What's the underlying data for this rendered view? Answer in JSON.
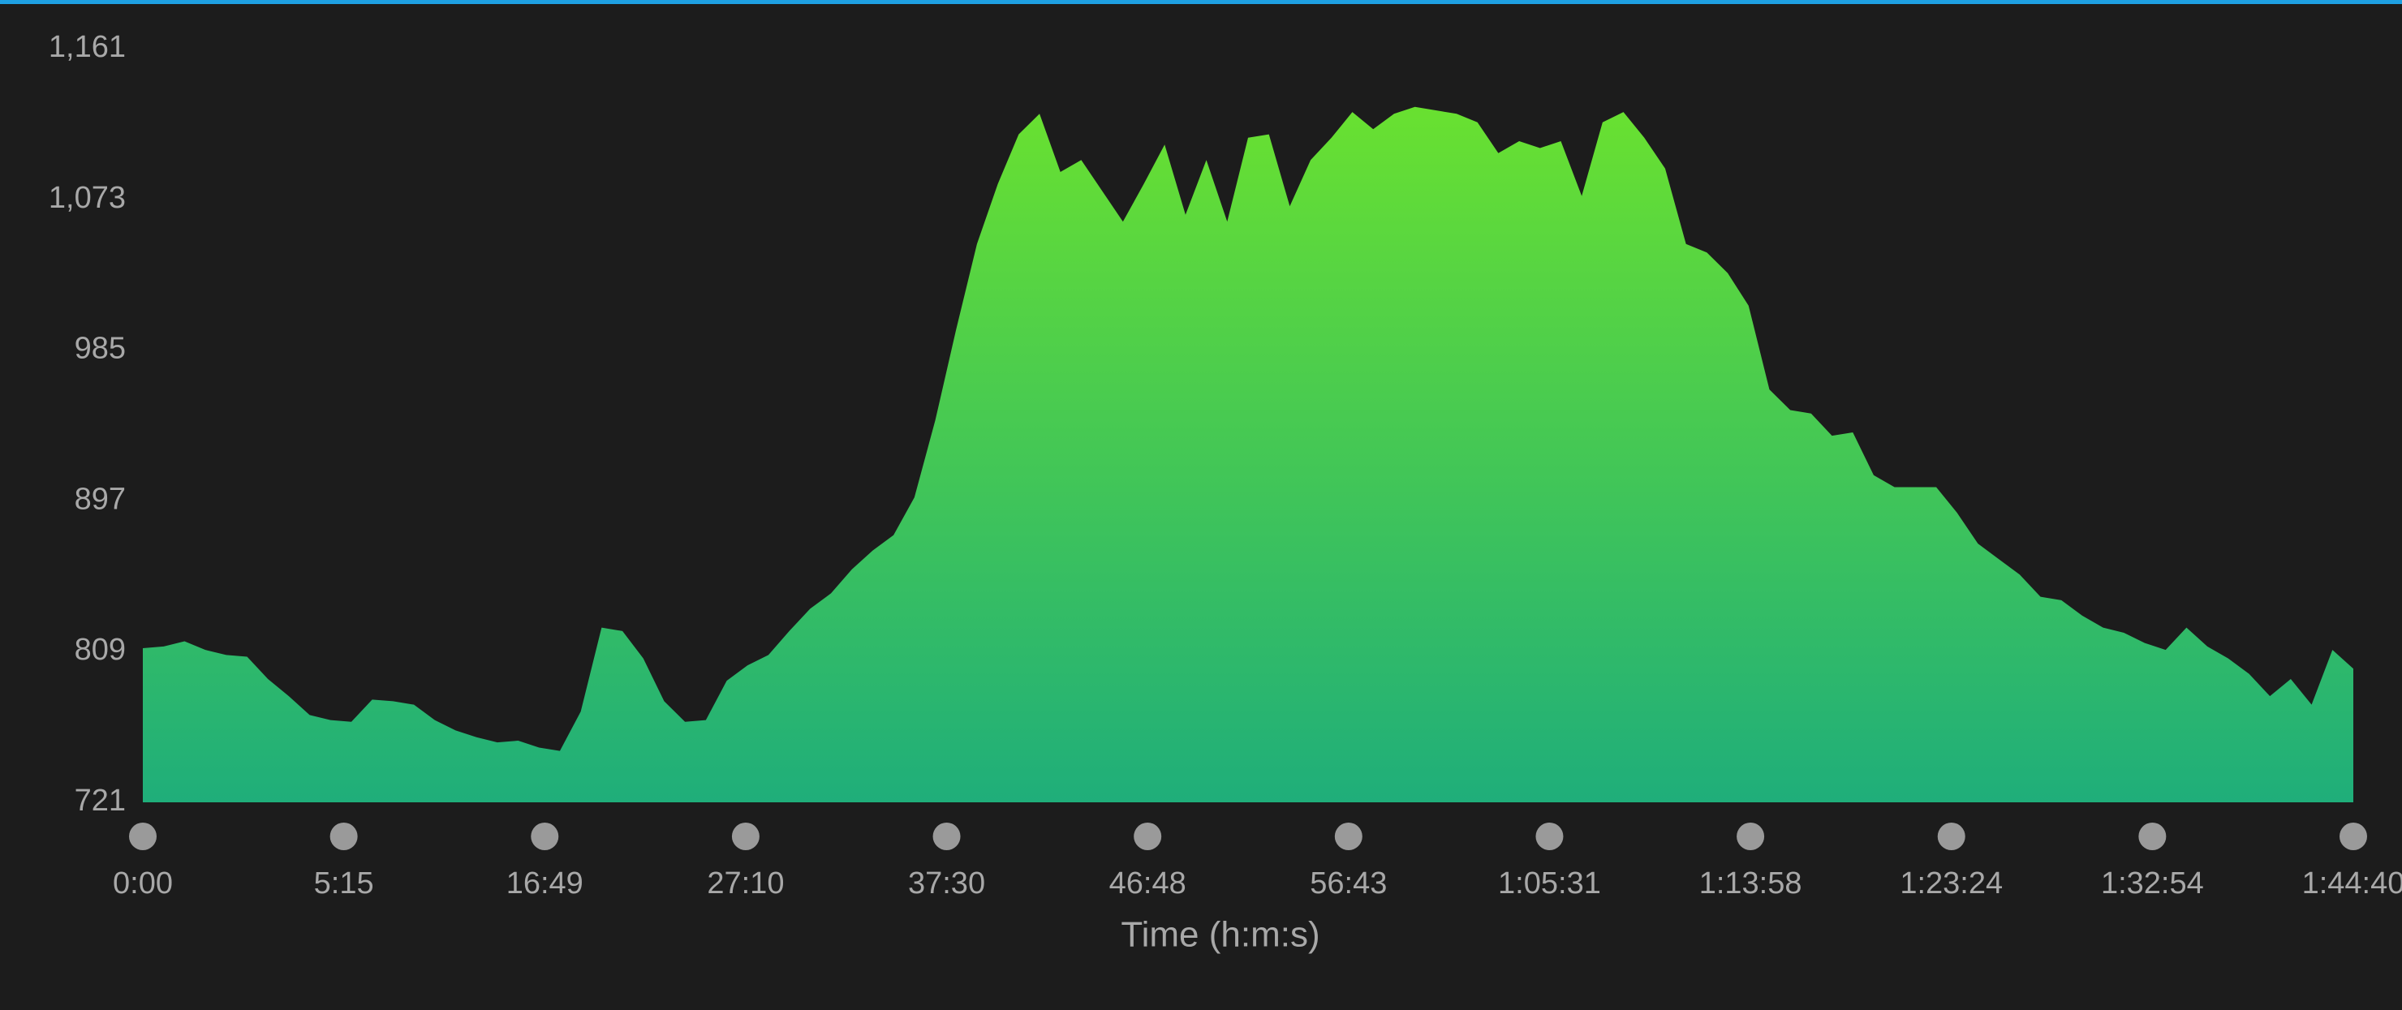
{
  "chart_data": {
    "type": "area",
    "x_title": "Time (h:m:s)",
    "x_labels": [
      "0:00",
      "5:15",
      "16:49",
      "27:10",
      "37:30",
      "46:48",
      "56:43",
      "1:05:31",
      "1:13:58",
      "1:23:24",
      "1:32:54",
      "1:44:40"
    ],
    "values": [
      811,
      812,
      815,
      810,
      807,
      806,
      793,
      783,
      772,
      769,
      768,
      781,
      780,
      778,
      769,
      763,
      759,
      756,
      757,
      753,
      751,
      774,
      823,
      821,
      805,
      780,
      768,
      769,
      792,
      801,
      807,
      821,
      834,
      843,
      857,
      868,
      877,
      899,
      944,
      997,
      1047,
      1082,
      1111,
      1123,
      1089,
      1096,
      1078,
      1060,
      1082,
      1105,
      1064,
      1096,
      1060,
      1109,
      1111,
      1069,
      1096,
      1109,
      1124,
      1114,
      1123,
      1127,
      1125,
      1123,
      1118,
      1100,
      1107,
      1103,
      1107,
      1075,
      1118,
      1124,
      1109,
      1091,
      1047,
      1042,
      1030,
      1011,
      962,
      950,
      948,
      935,
      937,
      912,
      905,
      905,
      905,
      890,
      872,
      863,
      854,
      841,
      839,
      830,
      823,
      820,
      814,
      810,
      823,
      812,
      805,
      796,
      783,
      793,
      778,
      810,
      799
    ],
    "ylim": [
      721,
      1161
    ],
    "yticks": [
      721,
      809,
      897,
      985,
      {
        "value": 1073,
        "label": "1,073"
      },
      {
        "value": 1161,
        "label": "1,161"
      }
    ],
    "grid": false,
    "color_top": "#6fe52a",
    "color_bottom": "#1fae7a",
    "marker_color": "#9a9a9a"
  }
}
